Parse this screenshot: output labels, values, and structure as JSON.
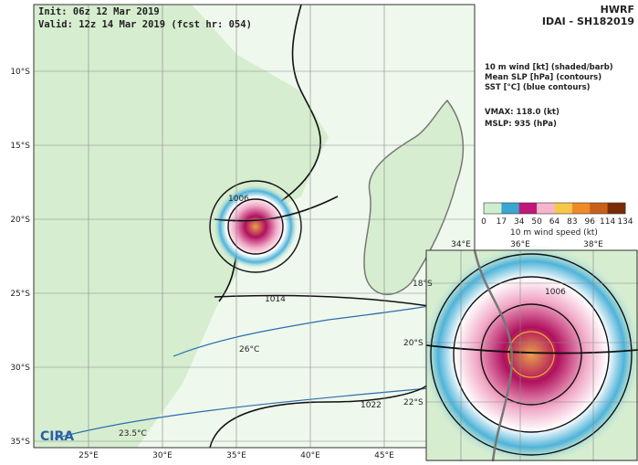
{
  "header": {
    "init": "Init:  06z 12 Mar 2019",
    "valid": "Valid: 12z 14 Mar 2019 (fcst hr: 054)",
    "model": "HWRF",
    "storm": "IDAI - SH182019"
  },
  "legend": {
    "lines": [
      "10 m wind [kt] (shaded/barb)",
      "Mean SLP [hPa] (contours)",
      "SST [°C] (blue contours)"
    ],
    "vmax": "VMAX: 118.0 (kt)",
    "mslp": "MSLP:  935 (hPa)"
  },
  "colorbar": {
    "ticks": [
      "0",
      "17",
      "34",
      "50",
      "64",
      "83",
      "96",
      "114",
      "134"
    ],
    "label": "10 m wind speed (kt)"
  },
  "map": {
    "lat_labels": [
      "10°S",
      "15°S",
      "20°S",
      "25°S",
      "30°S",
      "35°S"
    ],
    "lon_labels": [
      "25°E",
      "30°E",
      "35°E",
      "40°E",
      "45°E"
    ],
    "contour_labels": [
      "1006",
      "1014",
      "1022",
      "26°C",
      "23.5°C"
    ],
    "logo": "CIRA"
  },
  "inset": {
    "lon_labels": [
      "34°E",
      "36°E",
      "38°E"
    ],
    "lat_labels": [
      "18°S",
      "20°S",
      "22°S"
    ],
    "contour_labels": [
      "1006"
    ]
  }
}
